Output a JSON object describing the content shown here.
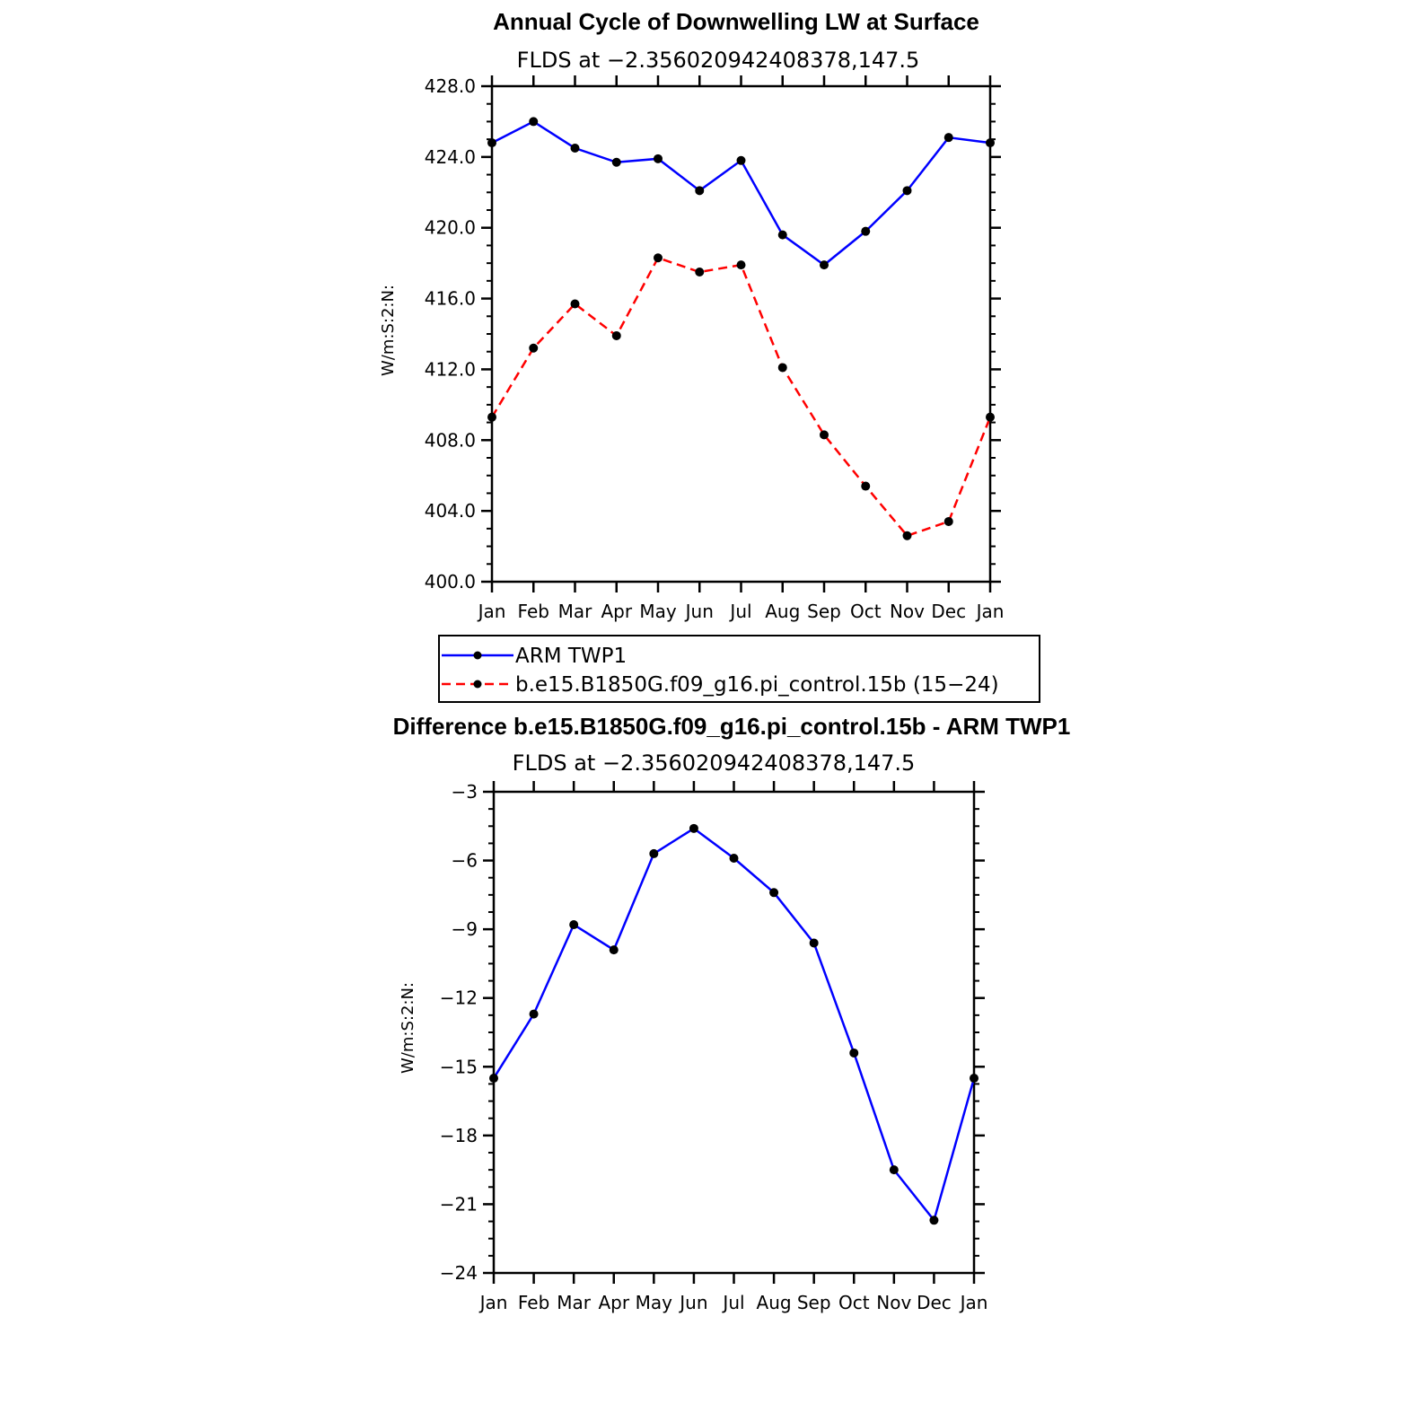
{
  "chart_data": [
    {
      "type": "line",
      "title": "Annual Cycle of Downwelling LW at Surface",
      "subtitle": "FLDS at −2.356020942408378,147.5",
      "ylabel": "W/m:S:2:N:",
      "xlabel": "",
      "categories": [
        "Jan",
        "Feb",
        "Mar",
        "Apr",
        "May",
        "Jun",
        "Jul",
        "Aug",
        "Sep",
        "Oct",
        "Nov",
        "Dec",
        "Jan"
      ],
      "ylim": [
        400,
        428
      ],
      "yticks": [
        "400.0",
        "404.0",
        "408.0",
        "412.0",
        "416.0",
        "420.0",
        "424.0",
        "428.0"
      ],
      "series": [
        {
          "name": "ARM TWP1",
          "color": "#0000ff",
          "dash": "solid",
          "values": [
            424.8,
            426.0,
            424.5,
            423.7,
            423.9,
            422.1,
            423.8,
            419.6,
            417.9,
            419.8,
            422.1,
            425.1,
            424.8
          ]
        },
        {
          "name": "b.e15.B1850G.f09_g16.pi_control.15b (15−24)",
          "color": "#ff0000",
          "dash": "dashed",
          "values": [
            409.3,
            413.2,
            415.7,
            413.9,
            418.3,
            417.5,
            417.9,
            412.1,
            408.3,
            405.4,
            402.6,
            403.4,
            409.3
          ]
        }
      ],
      "legend": "below"
    },
    {
      "type": "line",
      "title": "Difference b.e15.B1850G.f09_g16.pi_control.15b - ARM TWP1",
      "subtitle": "FLDS at −2.356020942408378,147.5",
      "ylabel": "W/m:S:2:N:",
      "xlabel": "",
      "categories": [
        "Jan",
        "Feb",
        "Mar",
        "Apr",
        "May",
        "Jun",
        "Jul",
        "Aug",
        "Sep",
        "Oct",
        "Nov",
        "Dec",
        "Jan"
      ],
      "ylim": [
        -24,
        -3
      ],
      "yticks": [
        "−24",
        "−21",
        "−18",
        "−15",
        "−12",
        "−9",
        "−6",
        "−3"
      ],
      "series": [
        {
          "name": "",
          "color": "#0000ff",
          "dash": "solid",
          "values": [
            -15.5,
            -12.7,
            -8.8,
            -9.9,
            -5.7,
            -4.6,
            -5.9,
            -7.4,
            -9.6,
            -14.4,
            -19.5,
            -21.7,
            -15.5
          ]
        }
      ]
    }
  ]
}
